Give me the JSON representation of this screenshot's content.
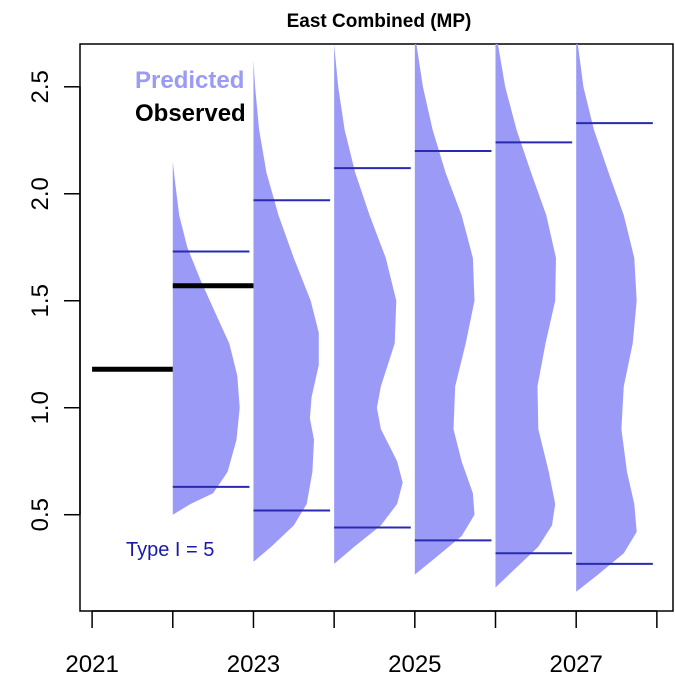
{
  "chart_data": {
    "type": "violin",
    "title": "East Combined (MP)",
    "xlabel": "",
    "ylabel": "",
    "xlim": [
      2020.85,
      2028.2
    ],
    "ylim": [
      0.05,
      2.7
    ],
    "x_ticks": [
      2021,
      2022,
      2023,
      2024,
      2025,
      2026,
      2027,
      2028
    ],
    "x_tick_labels": [
      "2021",
      "",
      "2023",
      "",
      "2025",
      "",
      "2027",
      ""
    ],
    "y_ticks": [
      0.5,
      1.0,
      1.5,
      2.0,
      2.5
    ],
    "y_tick_labels": [
      "0.5",
      "1.0",
      "1.5",
      "2.0",
      "2.5"
    ],
    "legend": {
      "position": "top-left",
      "entries": [
        {
          "label": "Predicted",
          "color": "#9b9bf7"
        },
        {
          "label": "Observed",
          "color": "#000000"
        }
      ]
    },
    "annotation": {
      "text": "Type I = 5",
      "color": "#1a1aa8"
    },
    "colors": {
      "predicted_fill": "#9b9bf7",
      "interval_line": "#2a2ab0",
      "observed": "#000000"
    },
    "observed": [
      {
        "x_start": 2021.0,
        "x_end": 2022.0,
        "y": 1.18
      },
      {
        "x_start": 2022.0,
        "x_end": 2023.0,
        "y": 1.57
      }
    ],
    "predicted": [
      {
        "year": 2022,
        "ymin": 0.5,
        "ymax": 2.15,
        "lower": 0.63,
        "upper": 1.73,
        "density": [
          [
            0.5,
            0.0
          ],
          [
            0.55,
            0.22
          ],
          [
            0.6,
            0.5
          ],
          [
            0.7,
            0.68
          ],
          [
            0.85,
            0.79
          ],
          [
            1.0,
            0.83
          ],
          [
            1.15,
            0.8
          ],
          [
            1.3,
            0.7
          ],
          [
            1.45,
            0.52
          ],
          [
            1.6,
            0.34
          ],
          [
            1.75,
            0.18
          ],
          [
            1.9,
            0.08
          ],
          [
            2.05,
            0.03
          ],
          [
            2.15,
            0.0
          ]
        ]
      },
      {
        "year": 2023,
        "ymin": 0.28,
        "ymax": 2.62,
        "lower": 0.52,
        "upper": 1.97,
        "density": [
          [
            0.28,
            0.0
          ],
          [
            0.35,
            0.22
          ],
          [
            0.45,
            0.5
          ],
          [
            0.55,
            0.66
          ],
          [
            0.7,
            0.73
          ],
          [
            0.85,
            0.75
          ],
          [
            0.95,
            0.7
          ],
          [
            1.05,
            0.72
          ],
          [
            1.2,
            0.81
          ],
          [
            1.35,
            0.81
          ],
          [
            1.5,
            0.71
          ],
          [
            1.7,
            0.5
          ],
          [
            1.9,
            0.31
          ],
          [
            2.1,
            0.16
          ],
          [
            2.3,
            0.07
          ],
          [
            2.5,
            0.02
          ],
          [
            2.62,
            0.0
          ]
        ]
      },
      {
        "year": 2024,
        "ymin": 0.27,
        "ymax": 2.7,
        "lower": 0.44,
        "upper": 2.12,
        "density": [
          [
            0.27,
            0.0
          ],
          [
            0.35,
            0.25
          ],
          [
            0.45,
            0.58
          ],
          [
            0.55,
            0.78
          ],
          [
            0.65,
            0.85
          ],
          [
            0.75,
            0.78
          ],
          [
            0.9,
            0.58
          ],
          [
            1.0,
            0.53
          ],
          [
            1.1,
            0.58
          ],
          [
            1.3,
            0.75
          ],
          [
            1.5,
            0.77
          ],
          [
            1.7,
            0.64
          ],
          [
            1.9,
            0.44
          ],
          [
            2.1,
            0.26
          ],
          [
            2.3,
            0.13
          ],
          [
            2.5,
            0.05
          ],
          [
            2.7,
            0.0
          ]
        ]
      },
      {
        "year": 2025,
        "ymin": 0.22,
        "ymax": 2.7,
        "lower": 0.38,
        "upper": 2.2,
        "density": [
          [
            0.22,
            0.0
          ],
          [
            0.3,
            0.26
          ],
          [
            0.4,
            0.58
          ],
          [
            0.5,
            0.74
          ],
          [
            0.6,
            0.72
          ],
          [
            0.75,
            0.58
          ],
          [
            0.9,
            0.48
          ],
          [
            1.1,
            0.5
          ],
          [
            1.3,
            0.63
          ],
          [
            1.5,
            0.74
          ],
          [
            1.7,
            0.72
          ],
          [
            1.9,
            0.58
          ],
          [
            2.1,
            0.38
          ],
          [
            2.3,
            0.22
          ],
          [
            2.5,
            0.1
          ],
          [
            2.7,
            0.02
          ]
        ]
      },
      {
        "year": 2026,
        "ymin": 0.16,
        "ymax": 2.7,
        "lower": 0.32,
        "upper": 2.24,
        "density": [
          [
            0.16,
            0.0
          ],
          [
            0.25,
            0.25
          ],
          [
            0.35,
            0.53
          ],
          [
            0.45,
            0.7
          ],
          [
            0.55,
            0.74
          ],
          [
            0.7,
            0.66
          ],
          [
            0.9,
            0.53
          ],
          [
            1.1,
            0.52
          ],
          [
            1.3,
            0.62
          ],
          [
            1.5,
            0.74
          ],
          [
            1.7,
            0.75
          ],
          [
            1.9,
            0.63
          ],
          [
            2.1,
            0.44
          ],
          [
            2.3,
            0.26
          ],
          [
            2.5,
            0.12
          ],
          [
            2.7,
            0.03
          ]
        ]
      },
      {
        "year": 2027,
        "ymin": 0.14,
        "ymax": 2.7,
        "lower": 0.27,
        "upper": 2.33,
        "density": [
          [
            0.14,
            0.0
          ],
          [
            0.22,
            0.27
          ],
          [
            0.32,
            0.59
          ],
          [
            0.42,
            0.75
          ],
          [
            0.55,
            0.72
          ],
          [
            0.7,
            0.63
          ],
          [
            0.9,
            0.56
          ],
          [
            1.1,
            0.59
          ],
          [
            1.3,
            0.7
          ],
          [
            1.5,
            0.75
          ],
          [
            1.7,
            0.72
          ],
          [
            1.9,
            0.59
          ],
          [
            2.1,
            0.4
          ],
          [
            2.3,
            0.22
          ],
          [
            2.5,
            0.09
          ],
          [
            2.7,
            0.02
          ]
        ]
      }
    ]
  }
}
